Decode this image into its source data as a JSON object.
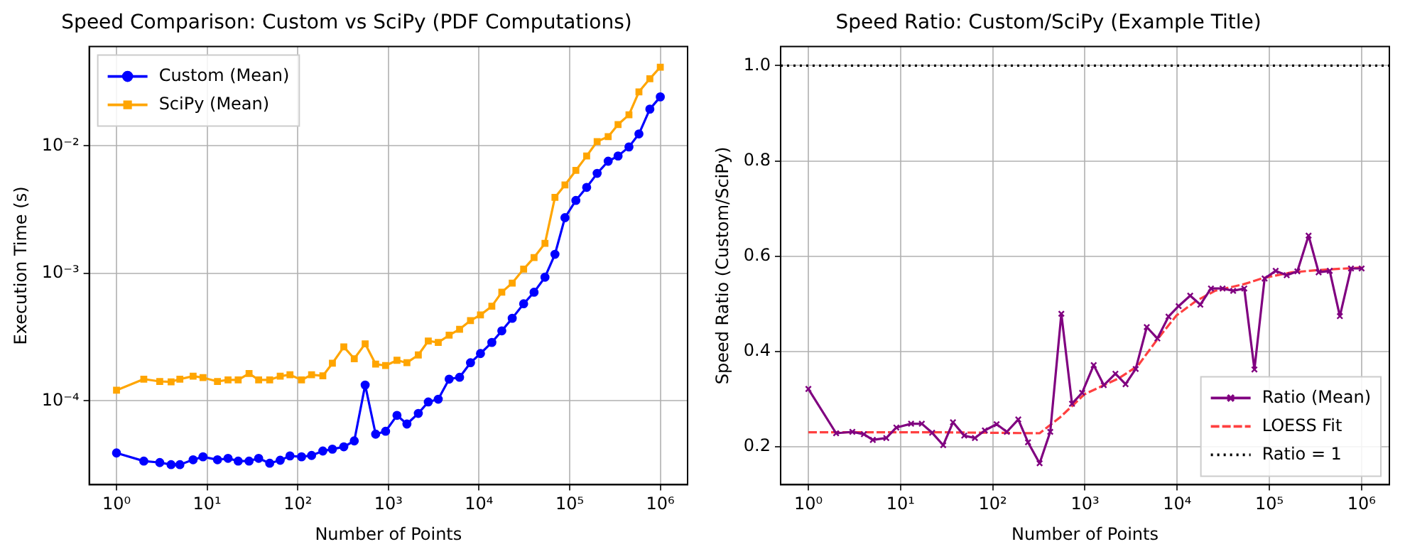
{
  "chart_data": [
    {
      "type": "line",
      "title": "Speed Comparison: Custom vs SciPy (PDF Computations)",
      "xlabel": "Number of Points",
      "ylabel": "Execution Time (s)",
      "log": "xy",
      "grid": true,
      "legend": "top left",
      "xlim": [
        0.5,
        2000000
      ],
      "xticks": [
        {
          "value": 1,
          "label": "10⁰"
        },
        {
          "value": 10,
          "label": "10¹"
        },
        {
          "value": 100,
          "label": "10²"
        },
        {
          "value": 1000,
          "label": "10³"
        },
        {
          "value": 10000,
          "label": "10⁴"
        },
        {
          "value": 100000,
          "label": "10⁵"
        },
        {
          "value": 1000000,
          "label": "10⁶"
        }
      ],
      "ylim": [
        2.2e-05,
        0.06
      ],
      "yticks": [
        {
          "value": 0.0001,
          "label": "10⁻⁴"
        },
        {
          "value": 0.001,
          "label": "10⁻³"
        },
        {
          "value": 0.01,
          "label": "10⁻²"
        }
      ],
      "x": [
        1,
        2,
        3,
        4,
        5,
        7,
        9,
        13,
        17,
        22,
        29,
        37,
        49,
        64,
        82,
        110,
        142,
        189,
        241,
        322,
        420,
        554,
        723,
        931,
        1243,
        1600,
        2138,
        2754,
        3548,
        4677,
        6100,
        8050,
        10370,
        13840,
        17830,
        23230,
        31050,
        40460,
        53400,
        68800,
        88700,
        117000,
        154000,
        201000,
        266000,
        342000,
        451000,
        581000,
        767000,
        1000000
      ],
      "series": [
        {
          "name": "Custom (Mean)",
          "color": "#0000ff",
          "marker": "circle",
          "values": [
            3.9e-05,
            3.37e-05,
            3.28e-05,
            3.16e-05,
            3.16e-05,
            3.45e-05,
            3.64e-05,
            3.45e-05,
            3.54e-05,
            3.37e-05,
            3.37e-05,
            3.54e-05,
            3.24e-05,
            3.42e-05,
            3.7e-05,
            3.64e-05,
            3.73e-05,
            4.04e-05,
            4.18e-05,
            4.36e-05,
            4.85e-05,
            0.000133,
            5.48e-05,
            5.77e-05,
            7.69e-05,
            6.58e-05,
            7.97e-05,
            9.8e-05,
            0.000103,
            0.000148,
            0.000153,
            0.000199,
            0.000235,
            0.000287,
            0.000354,
            0.000444,
            0.000577,
            0.000711,
            0.000933,
            0.00141,
            0.00273,
            0.00373,
            0.00472,
            0.00608,
            0.00757,
            0.00832,
            0.0098,
            0.0124,
            0.0194,
            0.0242
          ]
        },
        {
          "name": "SciPy (Mean)",
          "color": "#ffa500",
          "marker": "square",
          "values": [
            0.000121,
            0.000148,
            0.000142,
            0.000141,
            0.000148,
            0.000156,
            0.000152,
            0.000142,
            0.000146,
            0.000146,
            0.000164,
            0.000146,
            0.000146,
            0.000156,
            0.00016,
            0.000146,
            0.00016,
            0.000157,
            0.000197,
            0.000265,
            0.000214,
            0.00028,
            0.000194,
            0.000189,
            0.000208,
            0.000199,
            0.000229,
            0.000295,
            0.000287,
            0.000327,
            0.000364,
            0.000426,
            0.000472,
            0.000552,
            0.000711,
            0.000839,
            0.00108,
            0.00133,
            0.00172,
            0.00394,
            0.00493,
            0.00641,
            0.00832,
            0.0108,
            0.0118,
            0.0147,
            0.0175,
            0.0265,
            0.0336,
            0.0414
          ]
        }
      ]
    },
    {
      "type": "line",
      "title": "Speed Ratio: Custom/SciPy (Example Title)",
      "xlabel": "Number of Points",
      "ylabel": "Speed Ratio (Custom/SciPy)",
      "log": "x",
      "grid": true,
      "legend": "bottom right",
      "xlim": [
        0.5,
        2000000
      ],
      "xticks": [
        {
          "value": 1,
          "label": "10⁰"
        },
        {
          "value": 10,
          "label": "10¹"
        },
        {
          "value": 100,
          "label": "10²"
        },
        {
          "value": 1000,
          "label": "10³"
        },
        {
          "value": 10000,
          "label": "10⁴"
        },
        {
          "value": 100000,
          "label": "10⁵"
        },
        {
          "value": 1000000,
          "label": "10⁶"
        }
      ],
      "ylim": [
        0.12,
        1.04
      ],
      "yticks": [
        0.2,
        0.4,
        0.6,
        0.8,
        {
          "value": 1,
          "label": "1.0"
        }
      ],
      "x": [
        1,
        2,
        3,
        4,
        5,
        7,
        9,
        13,
        17,
        22,
        29,
        37,
        49,
        64,
        82,
        110,
        142,
        189,
        241,
        322,
        420,
        554,
        723,
        931,
        1243,
        1600,
        2138,
        2754,
        3548,
        4677,
        6100,
        8050,
        10370,
        13840,
        17830,
        23230,
        31050,
        40460,
        53400,
        68800,
        88700,
        117000,
        154000,
        201000,
        266000,
        342000,
        451000,
        581000,
        767000,
        1000000
      ],
      "series": [
        {
          "name": "Ratio (Mean)",
          "color": "#800080",
          "marker": "cross",
          "values": [
            0.321,
            0.228,
            0.231,
            0.226,
            0.214,
            0.218,
            0.24,
            0.248,
            0.248,
            0.229,
            0.203,
            0.251,
            0.223,
            0.218,
            0.234,
            0.247,
            0.231,
            0.257,
            0.209,
            0.165,
            0.231,
            0.479,
            0.29,
            0.313,
            0.371,
            0.329,
            0.353,
            0.331,
            0.363,
            0.451,
            0.427,
            0.473,
            0.495,
            0.517,
            0.498,
            0.532,
            0.532,
            0.527,
            0.532,
            0.362,
            0.553,
            0.569,
            0.56,
            0.568,
            0.643,
            0.566,
            0.569,
            0.474,
            0.574,
            0.574
          ]
        },
        {
          "name": "LOESS Fit",
          "color": "#ff4040",
          "marker": "none",
          "line_style": "dashed",
          "x": [
            1,
            29,
            322,
            541,
            988,
            2300,
            3720,
            6030,
            9770,
            15800,
            25600,
            52800,
            85500,
            176000,
            363000,
            1000000
          ],
          "values": [
            0.23,
            0.23,
            0.228,
            0.262,
            0.31,
            0.343,
            0.369,
            0.424,
            0.475,
            0.505,
            0.527,
            0.541,
            0.554,
            0.566,
            0.571,
            0.576
          ]
        }
      ],
      "ref_lines": [
        {
          "axis": "y",
          "value": 1,
          "label": "Ratio = 1",
          "color": "#000000",
          "line_style": "dotted"
        }
      ]
    }
  ]
}
